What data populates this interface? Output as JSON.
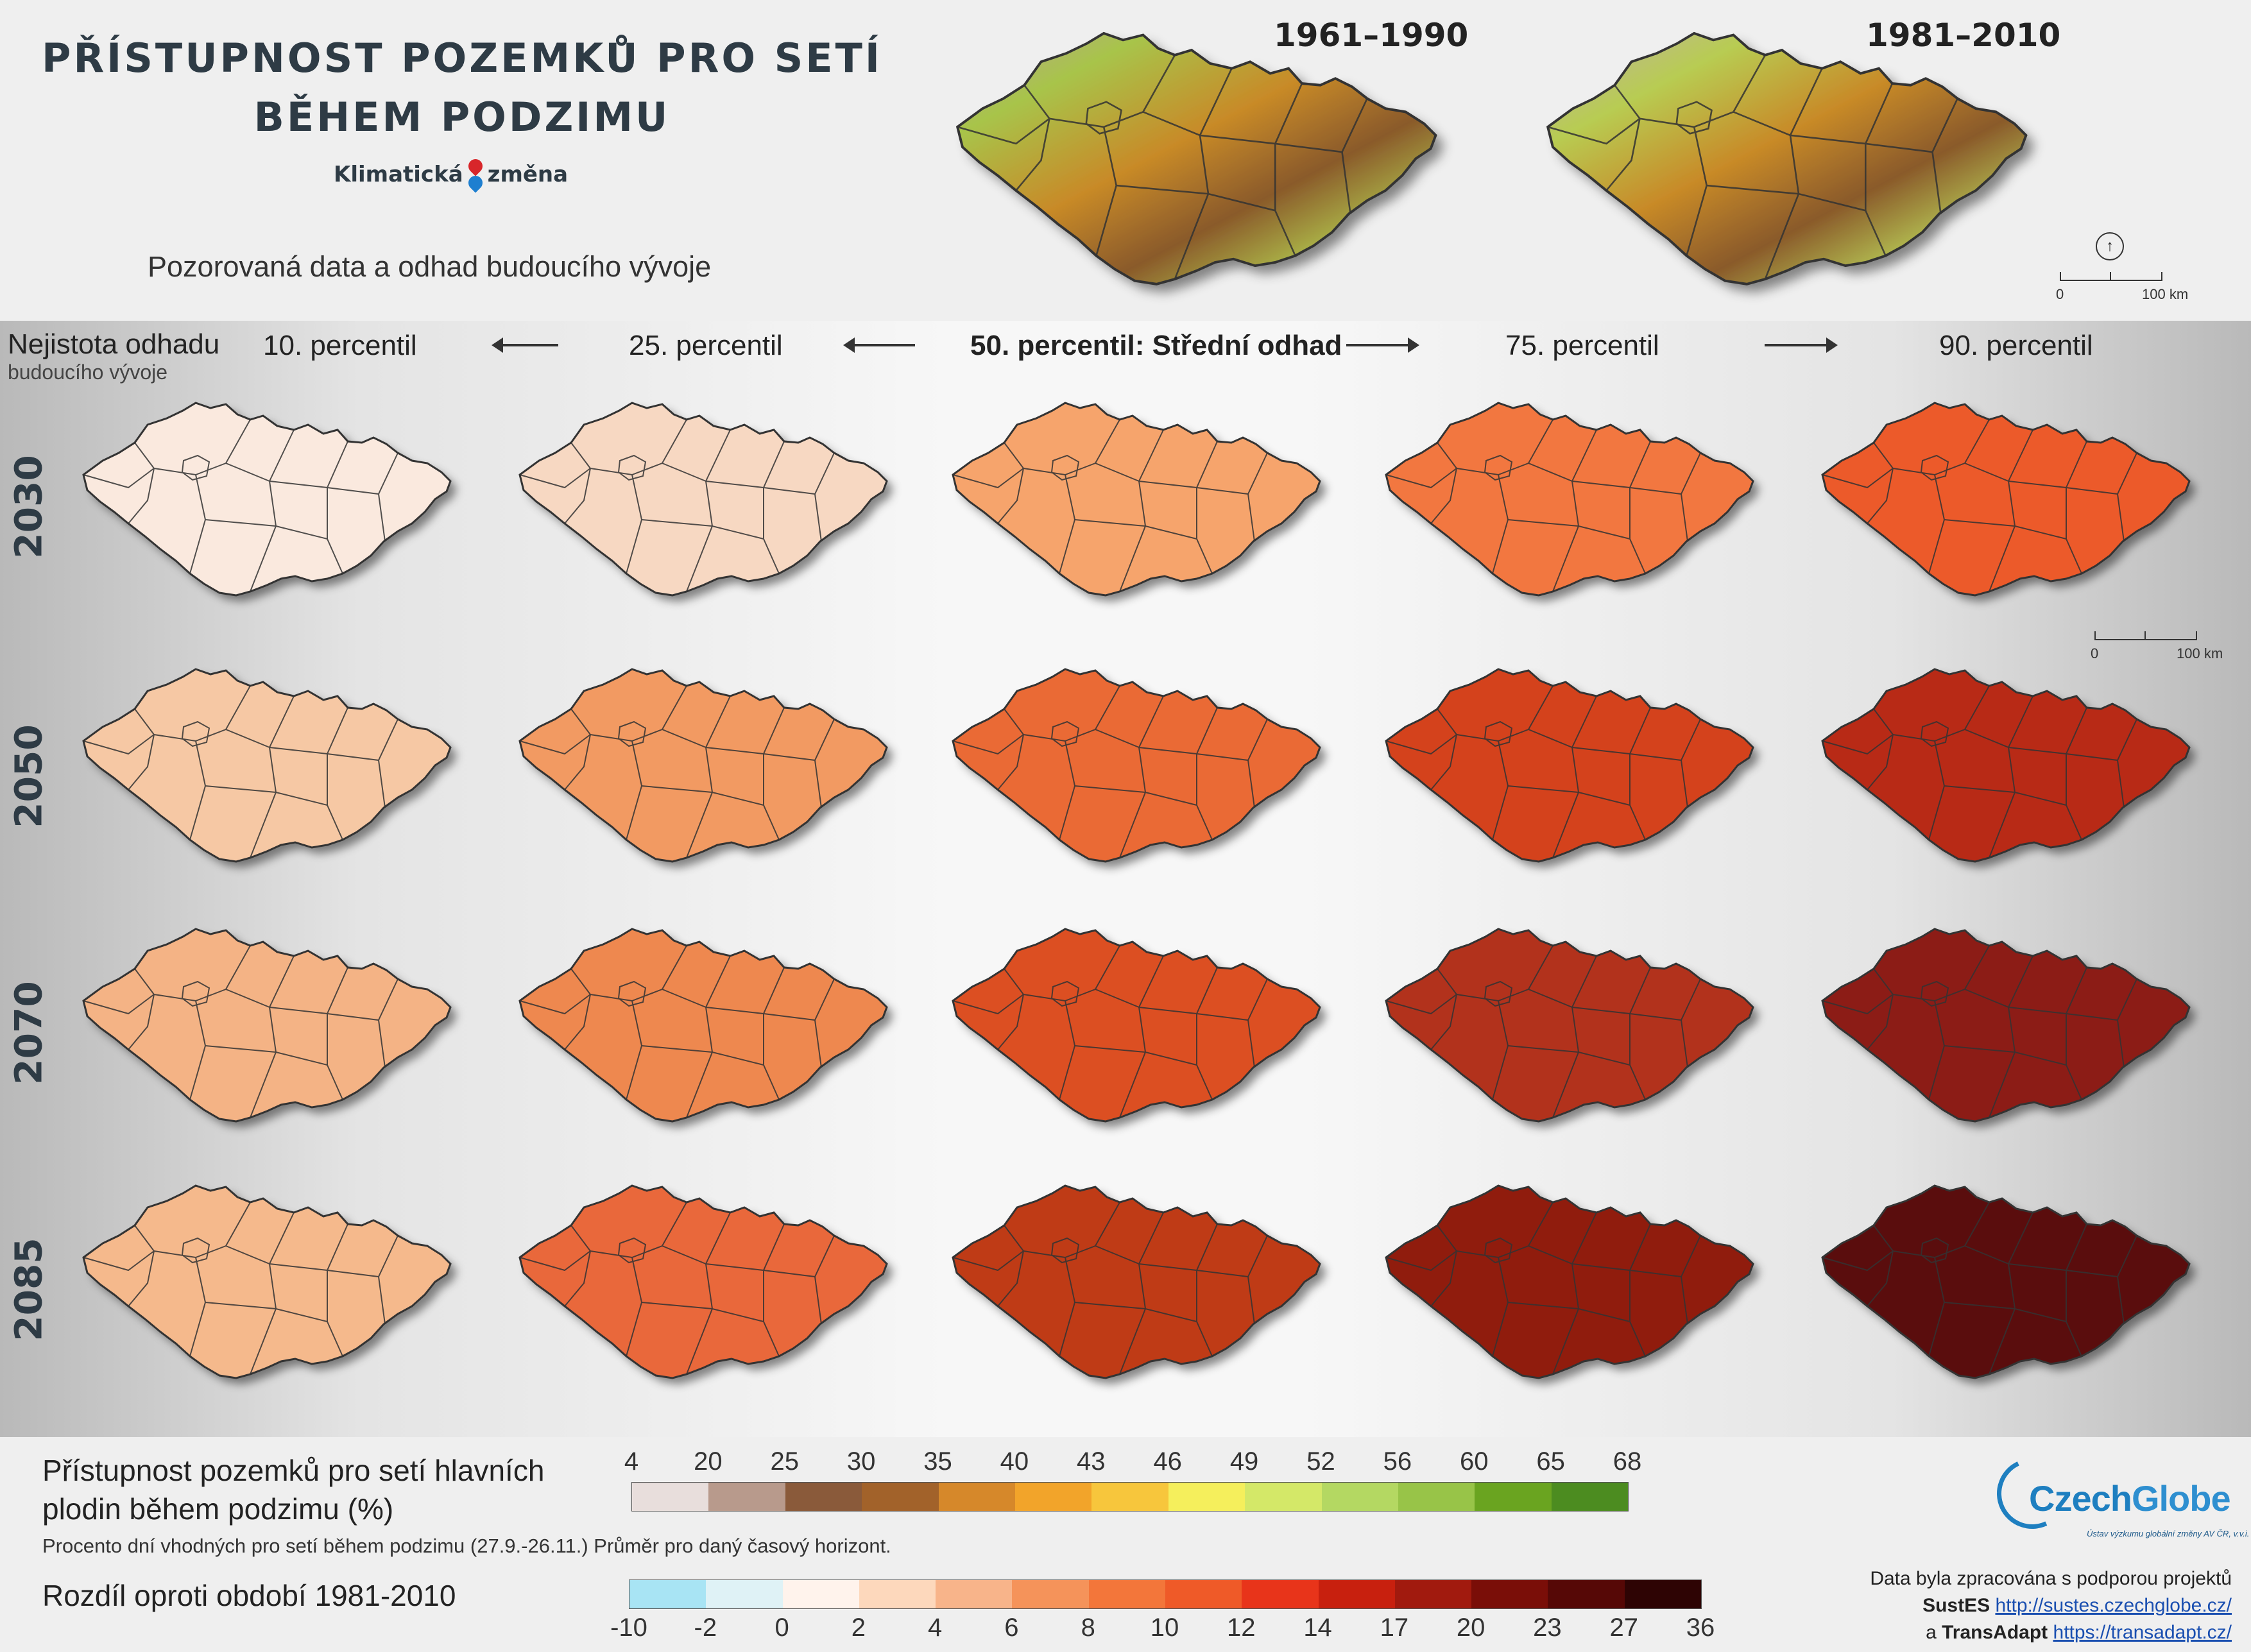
{
  "title": {
    "line1": "PŘÍSTUPNOST POZEMKŮ PRO SETÍ",
    "line2": "BĚHEM PODZIMU"
  },
  "brand": {
    "label_left": "Klimatická",
    "label_right": "změna"
  },
  "subtitle": "Pozorovaná data a odhad budoucího vývoje",
  "observed": [
    {
      "period": "1961–1990"
    },
    {
      "period": "1981–2010"
    }
  ],
  "scalebar": {
    "start": "0",
    "end": "100 km"
  },
  "uncertainty": {
    "line1": "Nejistota odhadu",
    "line2": "budoucího vývoje"
  },
  "columns": [
    "10. percentil",
    "25. percentil",
    "50. percentil: Střední odhad",
    "75. percentil",
    "90. percentil"
  ],
  "years": [
    "2030",
    "2050",
    "2070",
    "2085"
  ],
  "map_fills": [
    [
      "#fae9de",
      "#f7d8c2",
      "#f6a46c",
      "#f2773f",
      "#ec5a2c"
    ],
    [
      "#f6c8a4",
      "#f29a62",
      "#ea6a34",
      "#d4421c",
      "#b82c14"
    ],
    [
      "#f4b385",
      "#ee8850",
      "#dc4f22",
      "#b2301a",
      "#8c1e12"
    ],
    [
      "#f5b98c",
      "#e9683a",
      "#bf3a18",
      "#901f10",
      "#5a0f0a"
    ]
  ],
  "legend_access": {
    "title_line1": "Přístupnost pozemků pro setí hlavních",
    "title_line2": "plodin během podzimu (%)",
    "note": "Procento dní vhodných pro setí během podzimu (27.9.-26.11.) Průměr pro daný časový horizont.",
    "ticks": [
      "4",
      "20",
      "25",
      "30",
      "35",
      "40",
      "43",
      "46",
      "49",
      "52",
      "56",
      "60",
      "65",
      "68"
    ],
    "colors": [
      "#e8dedc",
      "#b89a8c",
      "#8a5a3a",
      "#a2622a",
      "#d6882a",
      "#f2a42a",
      "#f7c63c",
      "#f5ef5c",
      "#d4e868",
      "#b4d862",
      "#98c448",
      "#6aa420",
      "#4c8c20"
    ]
  },
  "legend_diff": {
    "title": "Rozdíl oproti období 1981-2010",
    "ticks": [
      "-10",
      "-2",
      "0",
      "2",
      "4",
      "6",
      "8",
      "10",
      "12",
      "14",
      "17",
      "20",
      "23",
      "27",
      "36"
    ],
    "colors": [
      "#a8e4f4",
      "#dff2f6",
      "#fff3ec",
      "#fdd8bc",
      "#f8b48a",
      "#f5935a",
      "#f3763a",
      "#ef5a28",
      "#e8341a",
      "#c8200e",
      "#a11a0e",
      "#7a0e08",
      "#560806",
      "#2e0404"
    ]
  },
  "logo": {
    "name_left": "Czech",
    "name_right": "Globe",
    "subline": "Ústav výzkumu globální změny AV ČR, v.v.i."
  },
  "credits": {
    "line1": "Data byla zpracována s podporou projektů",
    "project1": "SustES",
    "link1": "http://sustes.czechglobe.cz/",
    "prefix2": "a",
    "project2": "TransAdapt",
    "link2": "https://transadapt.cz/"
  }
}
